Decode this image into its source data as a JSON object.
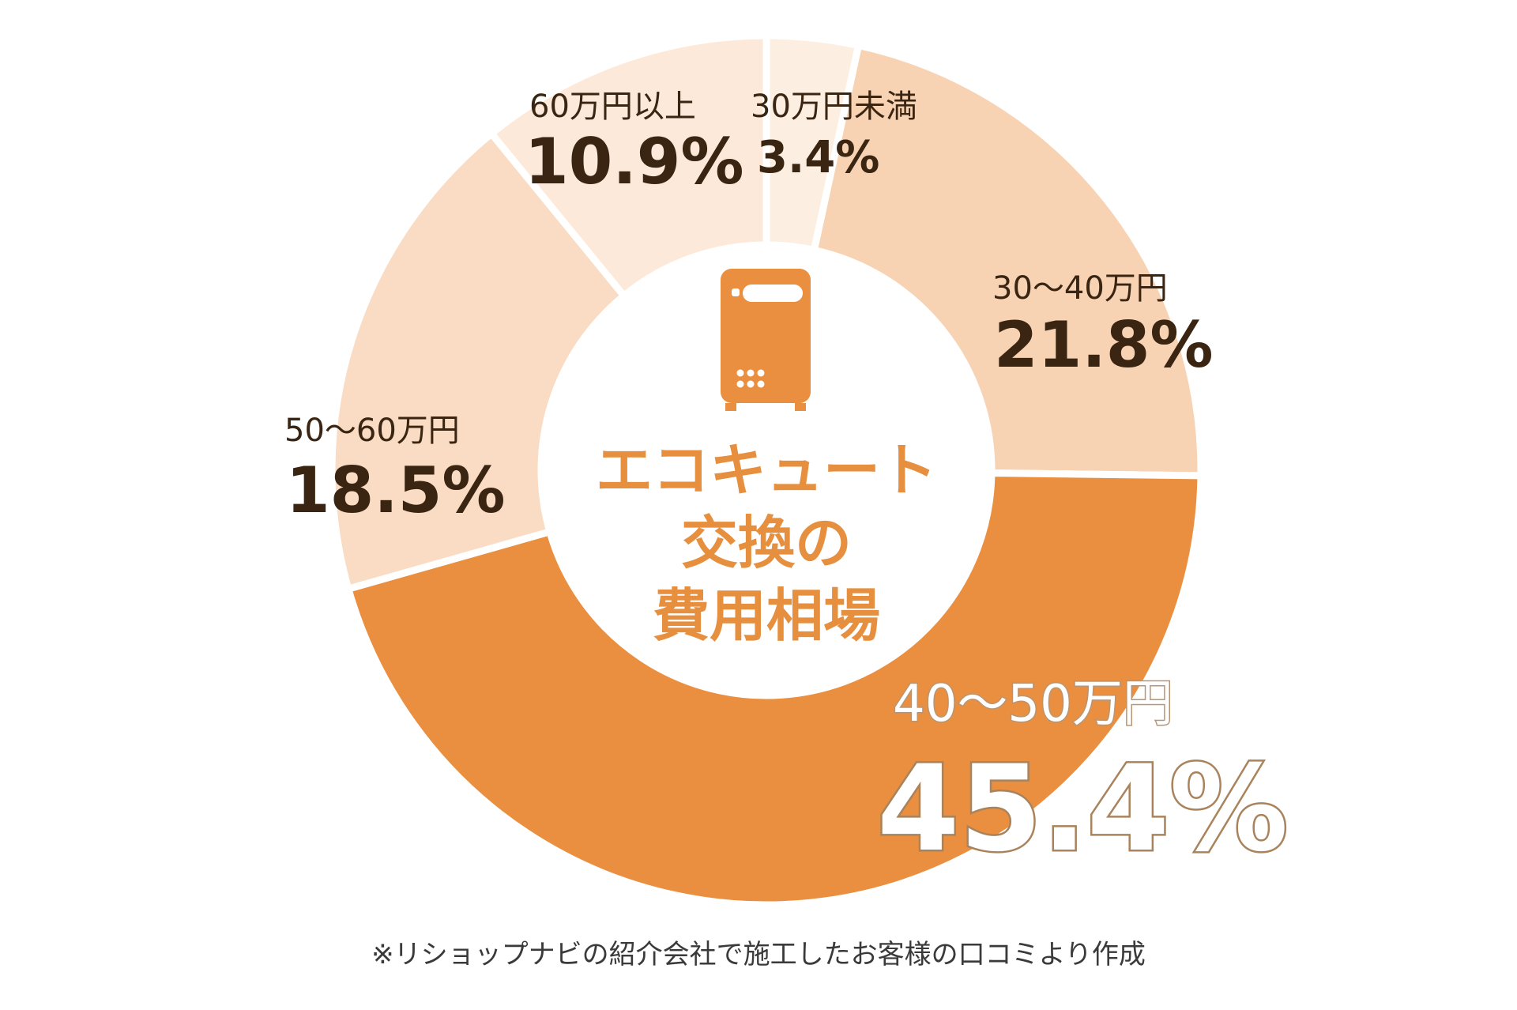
{
  "chart_data": {
    "type": "pie",
    "variant": "donut",
    "title_lines": [
      "エコキュート",
      "交換の",
      "費用相場"
    ],
    "categories": [
      "30万円未満",
      "30〜40万円",
      "40〜50万円",
      "50〜60万円",
      "60万円以上"
    ],
    "values": [
      3.4,
      21.8,
      45.4,
      18.5,
      10.9
    ],
    "value_labels": [
      "3.4%",
      "21.8%",
      "45.4%",
      "18.5%",
      "10.9%"
    ],
    "colors": [
      "#fdeee2",
      "#f7d3b3",
      "#e98f3f",
      "#f9dcc3",
      "#fde9da"
    ],
    "highlight_index": 2
  },
  "icon": "water-heater-icon",
  "footnote": "※リショップナビの紹介会社で施工したお客様の口コミより作成"
}
